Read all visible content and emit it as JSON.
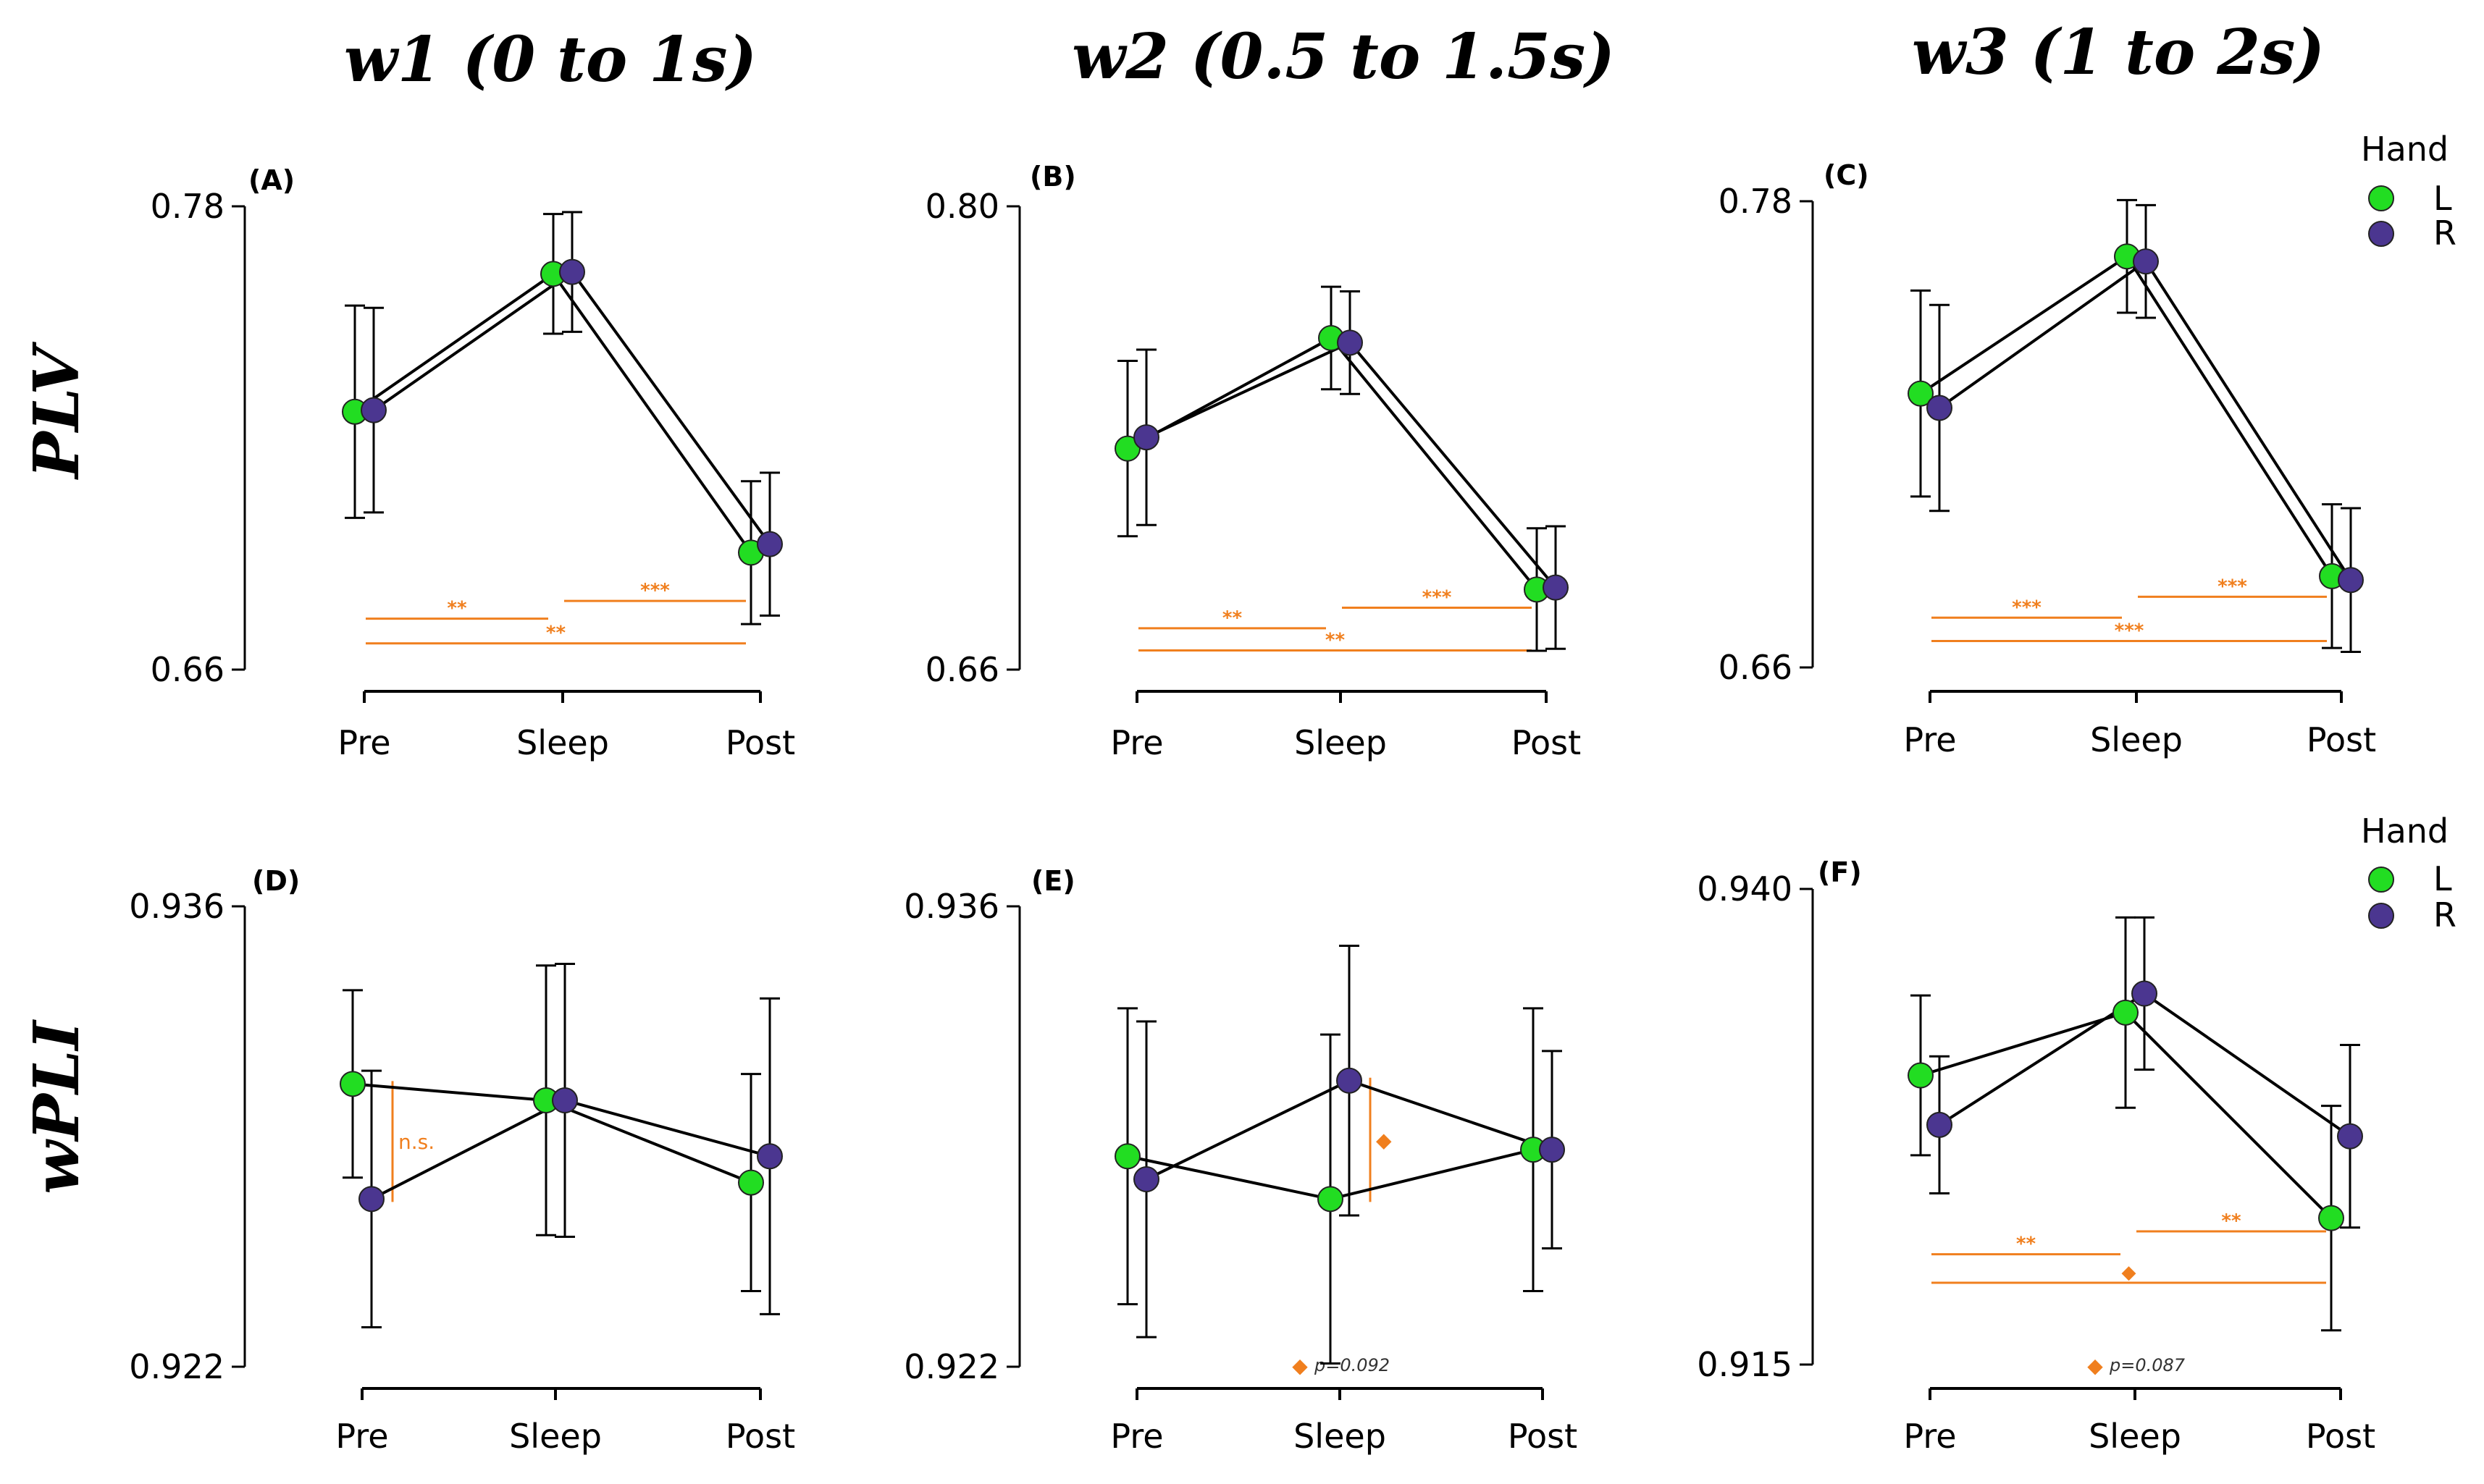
{
  "column_titles": [
    "w1 (0 to 1s)",
    "w2 (0.5 to 1.5s)",
    "w3 (1 to 2s)"
  ],
  "row_titles": [
    "PLV",
    "wPLI"
  ],
  "legend": {
    "title": "Hand",
    "items": [
      {
        "label": "L",
        "color": "#22dd22"
      },
      {
        "label": "R",
        "color": "#4b3690"
      }
    ]
  },
  "colors": {
    "L": "#22dd22",
    "R": "#4b3690",
    "significance": "#f07f1e",
    "line": "#000000"
  },
  "chart_data": [
    {
      "id": "A",
      "label": "(A)",
      "type": "line",
      "metric": "PLV",
      "window": "w1 (0 to 1s)",
      "categories": [
        "Pre",
        "Sleep",
        "Post"
      ],
      "ylim": [
        0.66,
        0.78
      ],
      "yticks": [
        "0.66",
        "0.78"
      ],
      "series": [
        {
          "name": "L",
          "values": [
            0.7268,
            0.7625,
            0.6903
          ],
          "err": [
            0.0275,
            0.0155,
            0.0185
          ]
        },
        {
          "name": "R",
          "values": [
            0.7272,
            0.763,
            0.6925
          ],
          "err": [
            0.0265,
            0.0155,
            0.0185
          ]
        }
      ],
      "brackets": [
        {
          "from": 0,
          "to": 1,
          "value": 0.6732,
          "label": "**"
        },
        {
          "from": 1,
          "to": 2,
          "value": 0.6778,
          "label": "***"
        },
        {
          "from": 0,
          "to": 2,
          "value": 0.6668,
          "label": "**"
        }
      ],
      "notes": []
    },
    {
      "id": "B",
      "label": "(B)",
      "type": "line",
      "metric": "PLV",
      "window": "w2 (0.5 to 1.5s)",
      "categories": [
        "Pre",
        "Sleep",
        "Post"
      ],
      "ylim": [
        0.66,
        0.8
      ],
      "yticks": [
        "0.66",
        "0.80"
      ],
      "series": [
        {
          "name": "L",
          "values": [
            0.7268,
            0.7602,
            0.6842
          ],
          "err": [
            0.0265,
            0.0155,
            0.0185
          ]
        },
        {
          "name": "R",
          "values": [
            0.7302,
            0.7588,
            0.6848
          ],
          "err": [
            0.0265,
            0.0155,
            0.0185
          ]
        }
      ],
      "brackets": [
        {
          "from": 0,
          "to": 1,
          "value": 0.6725,
          "label": "**"
        },
        {
          "from": 1,
          "to": 2,
          "value": 0.6787,
          "label": "***"
        },
        {
          "from": 0,
          "to": 2,
          "value": 0.6658,
          "label": "**"
        }
      ],
      "notes": []
    },
    {
      "id": "C",
      "label": "(C)",
      "type": "line",
      "metric": "PLV",
      "window": "w3 (1 to 2s)",
      "categories": [
        "Pre",
        "Sleep",
        "Post"
      ],
      "ylim": [
        0.66,
        0.78
      ],
      "yticks": [
        "0.66",
        "0.78"
      ],
      "series": [
        {
          "name": "L",
          "values": [
            0.7305,
            0.7658,
            0.6835
          ],
          "err": [
            0.0265,
            0.0145,
            0.0185
          ]
        },
        {
          "name": "R",
          "values": [
            0.7268,
            0.7645,
            0.6825
          ],
          "err": [
            0.0265,
            0.0145,
            0.0185
          ]
        }
      ],
      "brackets": [
        {
          "from": 0,
          "to": 1,
          "value": 0.6728,
          "label": "***"
        },
        {
          "from": 1,
          "to": 2,
          "value": 0.6782,
          "label": "***"
        },
        {
          "from": 0,
          "to": 2,
          "value": 0.6668,
          "label": "***"
        }
      ],
      "notes": []
    },
    {
      "id": "D",
      "label": "(D)",
      "type": "line",
      "metric": "wPLI",
      "window": "w1 (0 to 1s)",
      "categories": [
        "Pre",
        "Sleep",
        "Post"
      ],
      "ylim": [
        0.922,
        0.936
      ],
      "yticks": [
        "0.922",
        "0.936"
      ],
      "series": [
        {
          "name": "L",
          "values": [
            0.9306,
            0.9301,
            0.9276
          ],
          "err": [
            0.00285,
            0.0041,
            0.0033
          ]
        },
        {
          "name": "R",
          "values": [
            0.9271,
            0.9301,
            0.9284
          ],
          "err": [
            0.0039,
            0.00415,
            0.0048
          ]
        }
      ],
      "brackets": [],
      "notes": [
        {
          "type": "vertical",
          "at": 0,
          "from_value": 0.9271,
          "to_value": 0.9306,
          "label": "n.s."
        }
      ]
    },
    {
      "id": "E",
      "label": "(E)",
      "type": "line",
      "metric": "wPLI",
      "window": "w2 (0.5 to 1.5s)",
      "categories": [
        "Pre",
        "Sleep",
        "Post"
      ],
      "ylim": [
        0.922,
        0.936
      ],
      "yticks": [
        "0.922",
        "0.936"
      ],
      "series": [
        {
          "name": "L",
          "values": [
            0.9284,
            0.9271,
            0.9286
          ],
          "err": [
            0.0045,
            0.005,
            0.0043
          ]
        },
        {
          "name": "R",
          "values": [
            0.9277,
            0.9307,
            0.9286
          ],
          "err": [
            0.0048,
            0.0041,
            0.003
          ]
        }
      ],
      "brackets": [],
      "notes": [
        {
          "type": "vertical",
          "at": 1,
          "from_value": 0.9271,
          "to_value": 0.9307,
          "label": "◆"
        },
        {
          "type": "footnote",
          "label": "p=0.092"
        }
      ]
    },
    {
      "id": "F",
      "label": "(F)",
      "type": "line",
      "metric": "wPLI",
      "window": "w3 (1 to 2s)",
      "categories": [
        "Pre",
        "Sleep",
        "Post"
      ],
      "ylim": [
        0.915,
        0.94
      ],
      "yticks": [
        "0.915",
        "0.940"
      ],
      "series": [
        {
          "name": "L",
          "values": [
            0.9302,
            0.9335,
            0.9227
          ],
          "err": [
            0.0042,
            0.005,
            0.0059
          ]
        },
        {
          "name": "R",
          "values": [
            0.9276,
            0.9345,
            0.927
          ],
          "err": [
            0.0036,
            0.004,
            0.0048
          ]
        }
      ],
      "brackets": [
        {
          "from": 0,
          "to": 1,
          "value": 0.9208,
          "label": "**"
        },
        {
          "from": 1,
          "to": 2,
          "value": 0.922,
          "label": "**"
        },
        {
          "from": 0,
          "to": 2,
          "value": 0.9193,
          "label": "◆"
        }
      ],
      "notes": [
        {
          "type": "footnote",
          "label": "p=0.087"
        }
      ]
    }
  ]
}
